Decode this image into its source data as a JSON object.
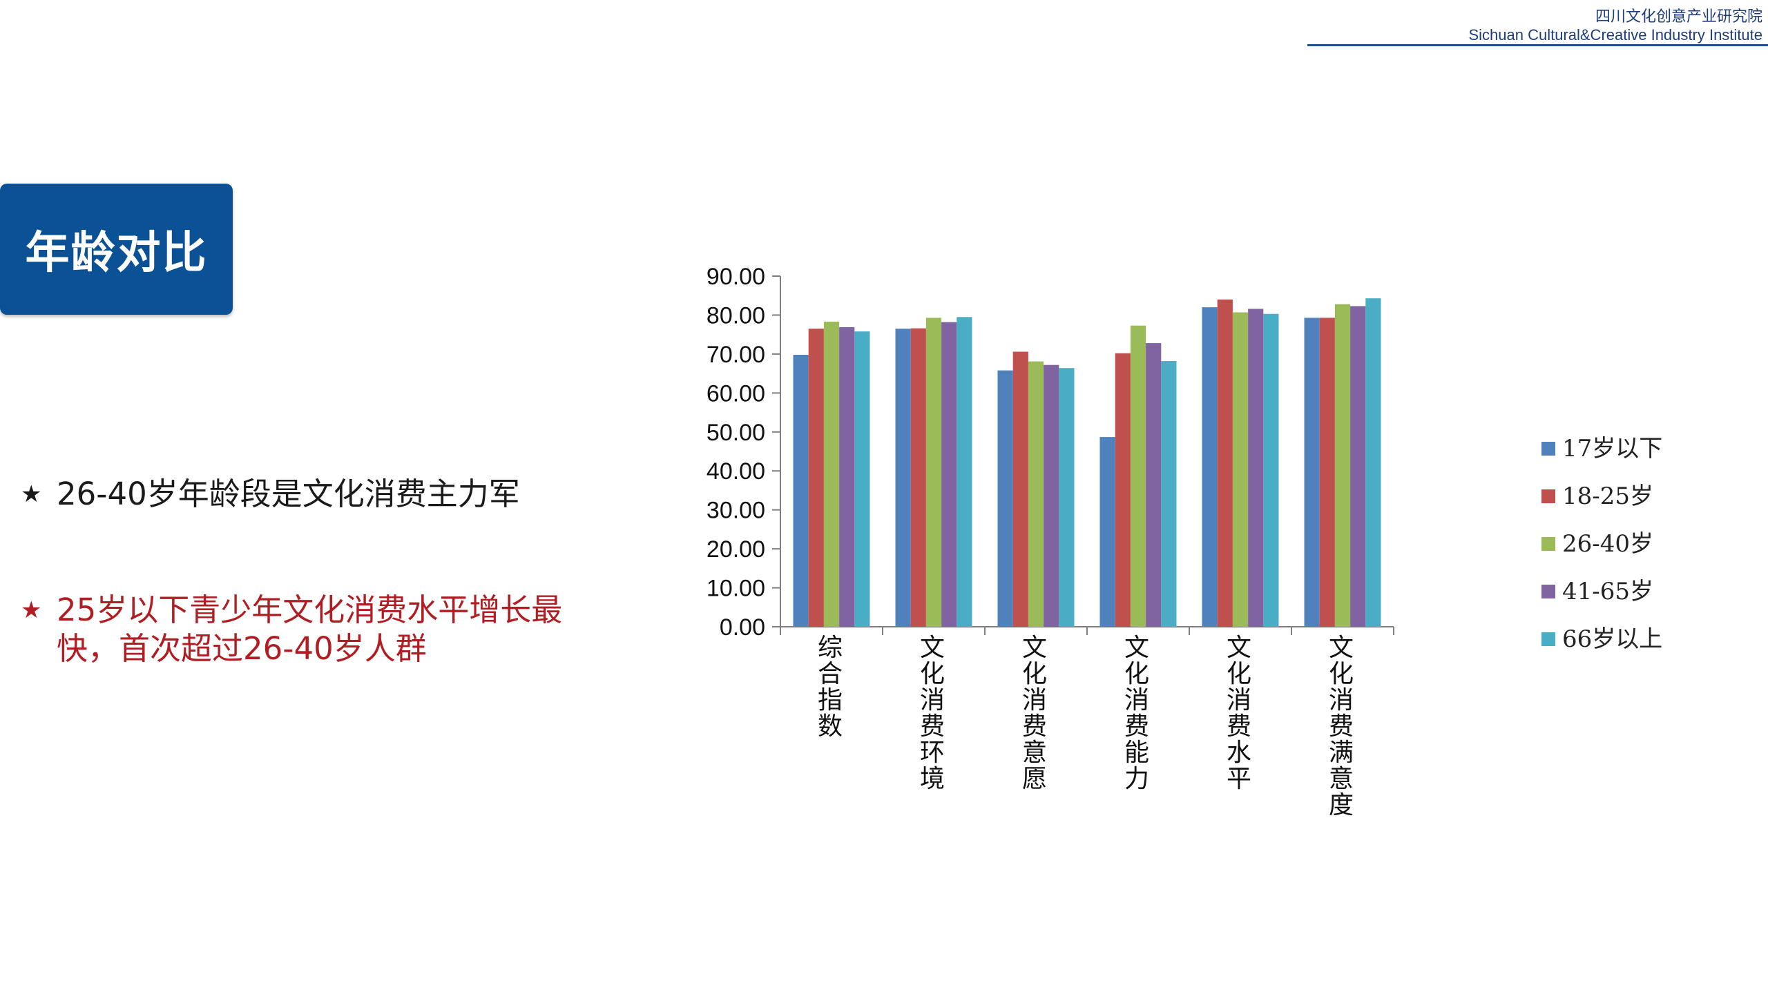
{
  "header": {
    "org_cn": "四川文化创意产业研究院",
    "org_en": "Sichuan Cultural&Creative Industry Institute"
  },
  "title": "年龄对比",
  "bullets": [
    {
      "star": "★",
      "text": "26-40岁年龄段是文化消费主力军",
      "color": "#1a1a1a"
    },
    {
      "star": "★",
      "text": "25岁以下青少年文化消费水平增长最快，首次超过26-40岁人群",
      "color": "#b01e23"
    }
  ],
  "chart_data": {
    "type": "bar",
    "categories": [
      "综合指数",
      "文化消费环境",
      "文化消费意愿",
      "文化消费能力",
      "文化消费水平",
      "文化消费满意度"
    ],
    "series": [
      {
        "name": "17岁以下",
        "color": "#4f81bd",
        "values": [
          69.8,
          76.5,
          65.8,
          48.7,
          82.0,
          79.3
        ]
      },
      {
        "name": "18-25岁",
        "color": "#c0504d",
        "values": [
          76.5,
          76.6,
          70.6,
          70.2,
          84.0,
          79.3
        ]
      },
      {
        "name": "26-40岁",
        "color": "#9bbb59",
        "values": [
          78.3,
          79.3,
          68.1,
          77.3,
          80.7,
          82.8
        ]
      },
      {
        "name": "41-65岁",
        "color": "#8064a2",
        "values": [
          76.9,
          78.2,
          67.2,
          72.8,
          81.6,
          82.3
        ]
      },
      {
        "name": "66岁以上",
        "color": "#4bacc6",
        "values": [
          75.8,
          79.5,
          66.4,
          68.2,
          80.3,
          84.3
        ]
      }
    ],
    "yticks": [
      "0.00",
      "10.00",
      "20.00",
      "30.00",
      "40.00",
      "50.00",
      "60.00",
      "70.00",
      "80.00",
      "90.00"
    ],
    "ylim": [
      0,
      90
    ],
    "legend_position": "right",
    "grid": false
  }
}
